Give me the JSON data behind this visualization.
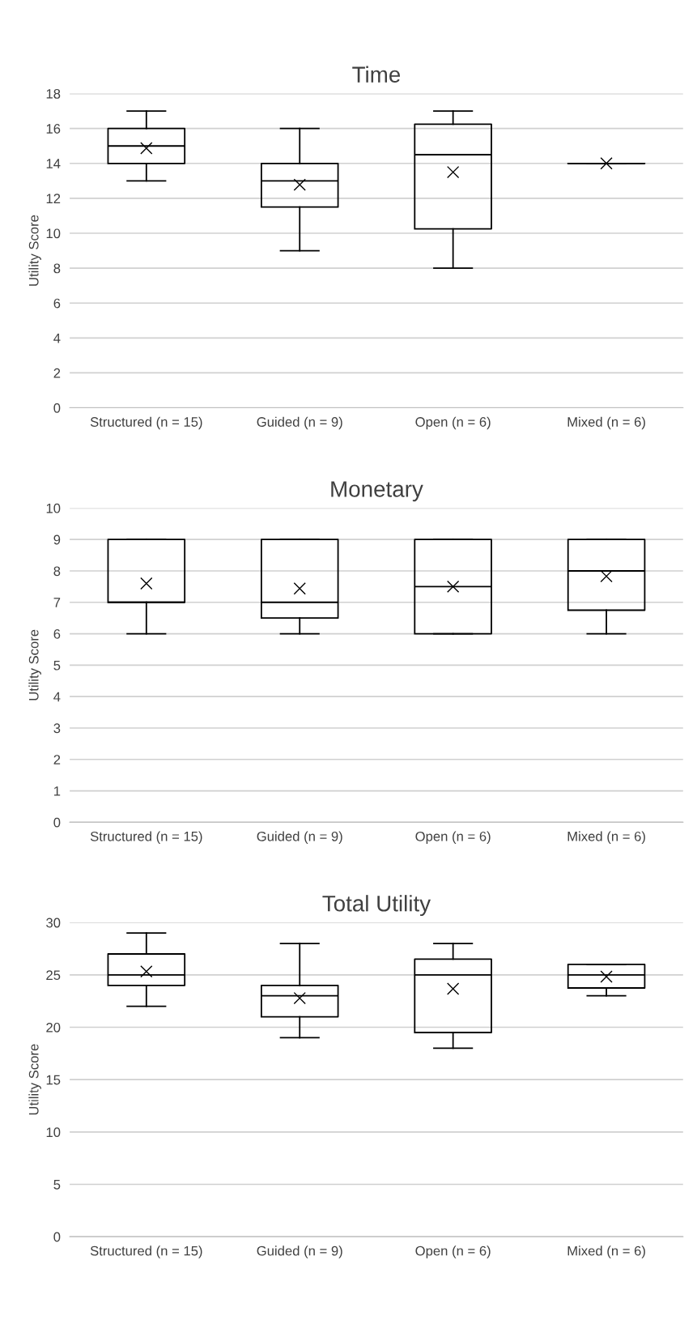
{
  "chart_data": [
    {
      "type": "box",
      "title": "Time",
      "ylabel": "Utility Score",
      "categories": [
        "Structured (n = 15)",
        "Guided (n = 9)",
        "Open (n = 6)",
        "Mixed (n = 6)"
      ],
      "boxes": [
        {
          "low": 13,
          "q1": 14,
          "median": 15,
          "q3": 16,
          "high": 17,
          "mean": 14.87
        },
        {
          "low": 9,
          "q1": 11.5,
          "median": 13,
          "q3": 14,
          "high": 16,
          "mean": 12.78
        },
        {
          "low": 8,
          "q1": 10.25,
          "median": 14.5,
          "q3": 16.25,
          "high": 17,
          "mean": 13.5
        },
        {
          "low": 14,
          "q1": 14,
          "median": 14,
          "q3": 14,
          "high": 14,
          "mean": 14
        }
      ],
      "ylim": [
        0,
        18
      ],
      "yticks": [
        0,
        2,
        4,
        6,
        8,
        10,
        12,
        14,
        16,
        18
      ],
      "grid": "y",
      "marker": "cross"
    },
    {
      "type": "box",
      "title": "Monetary",
      "ylabel": "Utility Score",
      "categories": [
        "Structured (n = 15)",
        "Guided (n = 9)",
        "Open (n = 6)",
        "Mixed (n = 6)"
      ],
      "boxes": [
        {
          "low": 6,
          "q1": 7,
          "median": 7,
          "q3": 9,
          "high": 9,
          "mean": 7.6
        },
        {
          "low": 6,
          "q1": 6.5,
          "median": 7,
          "q3": 9,
          "high": 9,
          "mean": 7.44
        },
        {
          "low": 6,
          "q1": 6,
          "median": 7.5,
          "q3": 9,
          "high": 9,
          "mean": 7.5
        },
        {
          "low": 6,
          "q1": 6.75,
          "median": 8,
          "q3": 9,
          "high": 9,
          "mean": 7.83
        }
      ],
      "ylim": [
        0,
        10
      ],
      "yticks": [
        0,
        1,
        2,
        3,
        4,
        5,
        6,
        7,
        8,
        9,
        10
      ],
      "grid": "y",
      "marker": "cross"
    },
    {
      "type": "box",
      "title": "Total Utility",
      "ylabel": "Utility Score",
      "categories": [
        "Structured (n = 15)",
        "Guided (n = 9)",
        "Open (n = 6)",
        "Mixed (n = 6)"
      ],
      "boxes": [
        {
          "low": 22,
          "q1": 24,
          "median": 25,
          "q3": 27,
          "high": 29,
          "mean": 25.33
        },
        {
          "low": 19,
          "q1": 21,
          "median": 23,
          "q3": 24,
          "high": 28,
          "mean": 22.78
        },
        {
          "low": 18,
          "q1": 19.5,
          "median": 25,
          "q3": 26.5,
          "high": 28,
          "mean": 23.67
        },
        {
          "low": 23,
          "q1": 23.75,
          "median": 25,
          "q3": 26,
          "high": 26,
          "mean": 24.83
        }
      ],
      "ylim": [
        0,
        30
      ],
      "yticks": [
        0,
        5,
        10,
        15,
        20,
        25,
        30
      ],
      "grid": "y",
      "marker": "cross"
    }
  ]
}
